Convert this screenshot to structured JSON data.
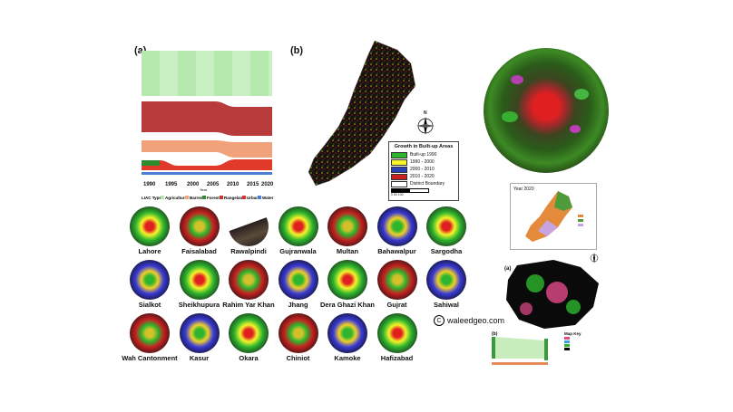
{
  "panel_a": {
    "label": "(a)",
    "years": [
      "1990",
      "1995",
      "2000",
      "2005",
      "2010",
      "2015",
      "2020"
    ],
    "x_axis_title": "Year",
    "legend_title": "LIAC Type",
    "legend": [
      {
        "name": "Agriculture",
        "color": "#b8e6b0"
      },
      {
        "name": "Barren",
        "color": "#f2a57a"
      },
      {
        "name": "Forest",
        "color": "#2e8b2e"
      },
      {
        "name": "Rangeland",
        "color": "#c0392b"
      },
      {
        "name": "Urban",
        "color": "#e63030"
      },
      {
        "name": "Water",
        "color": "#4a7fd1"
      }
    ]
  },
  "panel_b": {
    "label": "(b)",
    "north_label": "N",
    "legend_title": "Growth in Built-up Areas",
    "legend": [
      {
        "name": "Built-up 1990",
        "color": "#2db52d"
      },
      {
        "name": "1990 - 2000",
        "color": "#f5f52a"
      },
      {
        "name": "2000 - 2010",
        "color": "#2a3fb5"
      },
      {
        "name": "2010 - 2020",
        "color": "#c62020"
      },
      {
        "name": "District Boundary",
        "color": "#ffffff"
      }
    ],
    "scale_label": "0  50  100",
    "scale_unit": "Kilometers"
  },
  "cities": [
    "Lahore",
    "Faisalabad",
    "Rawalpindi",
    "Gujranwala",
    "Multan",
    "Bahawalpur",
    "Sargodha",
    "Sialkot",
    "Sheikhupura",
    "Rahim Yar Khan",
    "Jhang",
    "Dera Ghazi Khan",
    "Gujrat",
    "Sahiwal",
    "Wah Cantonment",
    "Kasur",
    "Okara",
    "Chiniot",
    "Kamoke",
    "Hafizabad"
  ],
  "watermark": "waleedgeo.com",
  "watermark_symbol": "C",
  "inset": {
    "year_label": "Year 2020"
  },
  "district_panel": {
    "label": "(a)"
  },
  "sankey_small": {
    "label": "(b)"
  },
  "map_key": {
    "title": "Map Key"
  }
}
